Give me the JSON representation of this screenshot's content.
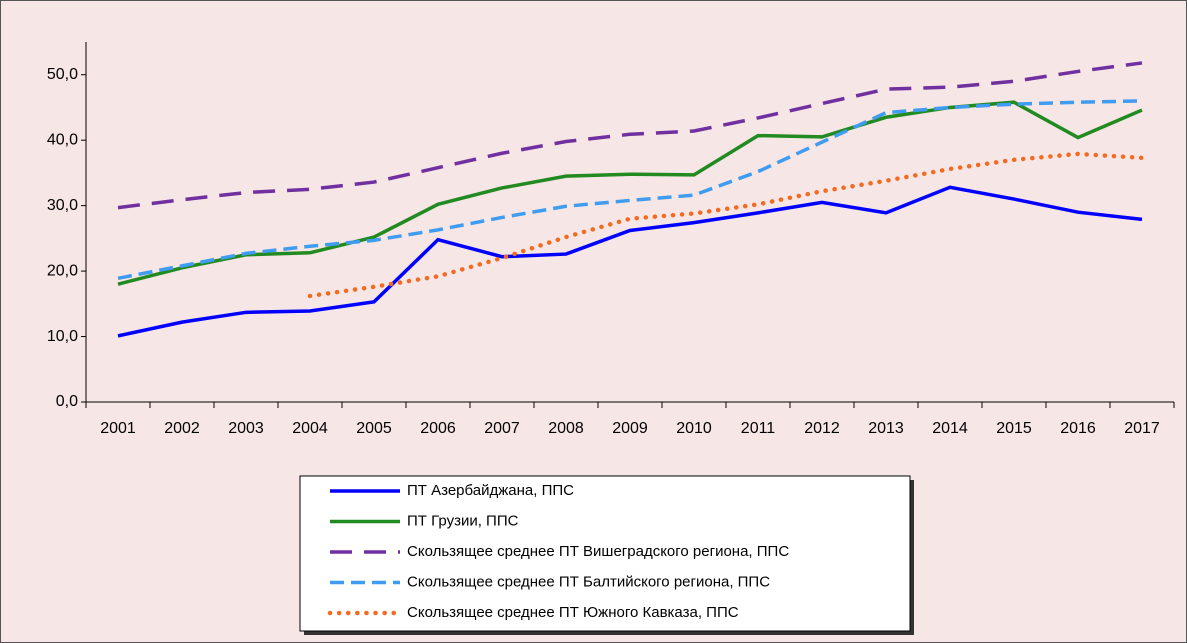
{
  "chart_data": {
    "type": "line",
    "categories": [
      "2001",
      "2002",
      "2003",
      "2004",
      "2005",
      "2006",
      "2007",
      "2008",
      "2009",
      "2010",
      "2011",
      "2012",
      "2013",
      "2014",
      "2015",
      "2016",
      "2017"
    ],
    "ylim": [
      0,
      55
    ],
    "yticks": [
      {
        "value": 0,
        "label": "0,0"
      },
      {
        "value": 10,
        "label": "10,0"
      },
      {
        "value": 20,
        "label": "20,0"
      },
      {
        "value": 30,
        "label": "30,0"
      },
      {
        "value": 40,
        "label": "40,0"
      },
      {
        "value": 50,
        "label": "50,0"
      }
    ],
    "grid": false,
    "legend": "bottom",
    "series": [
      {
        "name": "ПТ Азербайджана, ППС",
        "color": "#0000ff",
        "style": "solid",
        "values": [
          10.1,
          12.2,
          13.7,
          13.9,
          15.3,
          24.8,
          22.2,
          22.6,
          26.2,
          27.4,
          28.9,
          30.5,
          28.9,
          32.8,
          31.0,
          29.0,
          27.9
        ]
      },
      {
        "name": "ПТ Грузии, ППС",
        "color": "#218a21",
        "style": "solid",
        "values": [
          18.0,
          20.5,
          22.5,
          22.8,
          25.2,
          30.2,
          32.7,
          34.5,
          34.8,
          34.7,
          40.7,
          40.5,
          43.5,
          45.0,
          45.8,
          40.4,
          44.6
        ]
      },
      {
        "name": "Скользящее среднее ПТ Вишеградского региона, ППС",
        "color": "#7030a0",
        "style": "longdash",
        "values": [
          29.7,
          30.9,
          32.0,
          32.5,
          33.6,
          35.8,
          38.0,
          39.8,
          40.9,
          41.4,
          43.4,
          45.6,
          47.8,
          48.1,
          49.0,
          50.5,
          51.8
        ]
      },
      {
        "name": "Скользящее среднее ПТ Балтийского региона, ППС",
        "color": "#3f9cf0",
        "style": "dashed",
        "values": [
          18.9,
          20.8,
          22.7,
          23.8,
          24.7,
          26.3,
          28.2,
          29.9,
          30.8,
          31.6,
          35.2,
          39.7,
          44.2,
          45.0,
          45.5,
          45.8,
          46.0
        ]
      },
      {
        "name": "Скользящее среднее ПТ Южного Кавказа, ППС",
        "color": "#f26b21",
        "style": "dotted",
        "values": [
          null,
          null,
          null,
          16.2,
          17.6,
          19.2,
          22.0,
          25.2,
          28.0,
          28.8,
          30.2,
          32.2,
          33.8,
          35.6,
          37.0,
          37.9,
          37.3
        ]
      }
    ]
  }
}
